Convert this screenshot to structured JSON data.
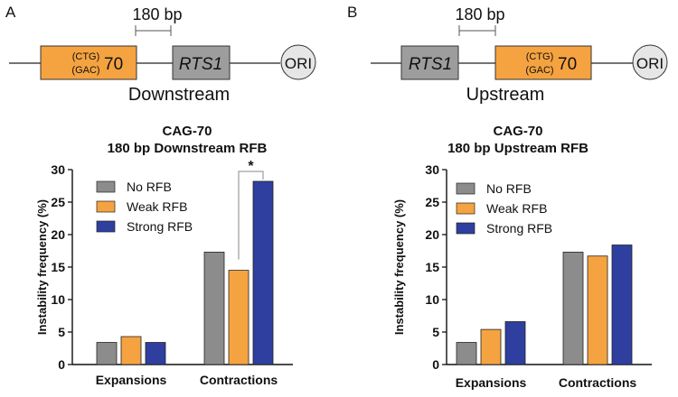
{
  "panels": [
    {
      "letter": "A",
      "scale_label": "180 bp",
      "repeat_top": "(CTG)",
      "repeat_bottom": "(GAC)",
      "repeat_count": "70",
      "rts_label": "RTS1",
      "ori_label": "ORI",
      "position_label": "Downstream",
      "colors": {
        "repeat_box": "#F5A340",
        "rts_box": "#9D9D9D",
        "ori": "#E6E6E6"
      }
    },
    {
      "letter": "B",
      "scale_label": "180 bp",
      "repeat_top": "(CTG)",
      "repeat_bottom": "(GAC)",
      "repeat_count": "70",
      "rts_label": "RTS1",
      "ori_label": "ORI",
      "position_label": "Upstream",
      "colors": {
        "repeat_box": "#F5A340",
        "rts_box": "#9D9D9D",
        "ori": "#E6E6E6"
      }
    }
  ],
  "chart_data": [
    {
      "type": "bar",
      "title": "CAG-70",
      "subtitle": "180 bp Downstream RFB",
      "xlabel": "",
      "ylabel": "Instability frequency (%)",
      "ylim": [
        0,
        30
      ],
      "yticks": [
        "0",
        "5",
        "10",
        "15",
        "20",
        "25",
        "30"
      ],
      "categories": [
        "Expansions",
        "Contractions"
      ],
      "series": [
        {
          "name": "No RFB",
          "color": "#8C8C8C",
          "values": [
            3.4,
            17.3
          ]
        },
        {
          "name": "Weak  RFB",
          "color": "#F5A340",
          "values": [
            4.3,
            14.5
          ]
        },
        {
          "name": "Strong RFB",
          "color": "#2E3FA0",
          "values": [
            3.4,
            28.2
          ]
        }
      ],
      "annotation": {
        "text": "*",
        "category": "Contractions",
        "from_series": 1,
        "to_series": 2
      },
      "legend": "top-left"
    },
    {
      "type": "bar",
      "title": "CAG-70",
      "subtitle": "180 bp Upstream RFB",
      "xlabel": "",
      "ylabel": "Instability frequency (%)",
      "ylim": [
        0,
        30
      ],
      "yticks": [
        "0",
        "5",
        "10",
        "15",
        "20",
        "25",
        "30"
      ],
      "categories": [
        "Expansions",
        "Contractions"
      ],
      "series": [
        {
          "name": "No RFB",
          "color": "#8C8C8C",
          "values": [
            3.4,
            17.3
          ]
        },
        {
          "name": "Weak RFB",
          "color": "#F5A340",
          "values": [
            5.4,
            16.7
          ]
        },
        {
          "name": "Strong RFB",
          "color": "#2E3FA0",
          "values": [
            6.6,
            18.4
          ]
        }
      ],
      "legend": "top-left"
    }
  ]
}
